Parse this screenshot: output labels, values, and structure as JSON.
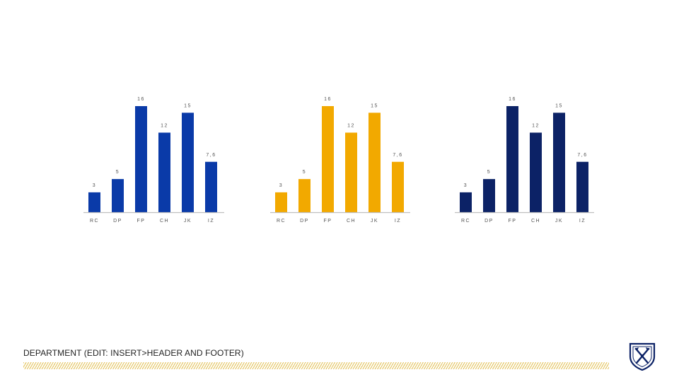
{
  "chart_data": [
    {
      "type": "bar",
      "categories": [
        "RC",
        "DP",
        "FP",
        "CH",
        "JK",
        "IZ"
      ],
      "values": [
        3,
        5,
        16,
        12,
        15,
        7.6
      ],
      "value_labels": [
        "3",
        "5",
        "16",
        "12",
        "15",
        "7,6"
      ],
      "color": "#0a3aa8",
      "ylim": [
        0,
        16
      ]
    },
    {
      "type": "bar",
      "categories": [
        "RC",
        "DP",
        "FP",
        "CH",
        "JK",
        "IZ"
      ],
      "values": [
        3,
        5,
        16,
        12,
        15,
        7.6
      ],
      "value_labels": [
        "3",
        "5",
        "16",
        "12",
        "15",
        "7,6"
      ],
      "color": "#f2a900",
      "ylim": [
        0,
        16
      ]
    },
    {
      "type": "bar",
      "categories": [
        "RC",
        "DP",
        "FP",
        "CH",
        "JK",
        "IZ"
      ],
      "values": [
        3,
        5,
        16,
        12,
        15,
        7.6
      ],
      "value_labels": [
        "3",
        "5",
        "16",
        "12",
        "15",
        "7,6"
      ],
      "color": "#0c2266",
      "ylim": [
        0,
        16
      ]
    }
  ],
  "footer": {
    "department_text": "DEPARTMENT (EDIT: INSERT>HEADER AND FOOTER)",
    "stripe_color": "#e6c86a"
  },
  "logo": {
    "icon": "shield-crossed-torches-icon",
    "color": "#0c2266"
  }
}
